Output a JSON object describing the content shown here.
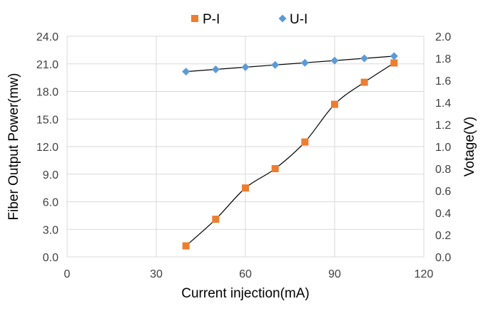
{
  "chart_data": {
    "type": "scatter",
    "xlabel": "Current injection(mA)",
    "ylabel": "Fiber Output Power(mw)",
    "y2label": "Votage(V)",
    "xlim": [
      0,
      120
    ],
    "ylim": [
      0,
      24
    ],
    "y2lim": [
      0,
      2
    ],
    "x_ticks": [
      "0",
      "30",
      "60",
      "90",
      "120"
    ],
    "y_ticks": [
      "0.0",
      "3.0",
      "6.0",
      "9.0",
      "12.0",
      "15.0",
      "18.0",
      "21.0",
      "24.0"
    ],
    "y2_ticks": [
      "0.0",
      "0.2",
      "0.4",
      "0.6",
      "0.8",
      "1.0",
      "1.2",
      "1.4",
      "1.6",
      "1.8",
      "2.0"
    ],
    "grid": true,
    "legend_position": "top",
    "series": [
      {
        "name": "P-I",
        "axis": "left",
        "marker": "square",
        "color": "#ED7D31",
        "x": [
          40,
          50,
          60,
          70,
          80,
          90,
          100,
          110
        ],
        "y": [
          1.2,
          4.1,
          7.5,
          9.6,
          12.5,
          16.6,
          19.0,
          21.1
        ]
      },
      {
        "name": "U-I",
        "axis": "right",
        "marker": "diamond",
        "color": "#5B9BD5",
        "x": [
          40,
          50,
          60,
          70,
          80,
          90,
          100,
          110
        ],
        "y": [
          1.68,
          1.7,
          1.72,
          1.74,
          1.76,
          1.78,
          1.8,
          1.82
        ]
      }
    ]
  }
}
